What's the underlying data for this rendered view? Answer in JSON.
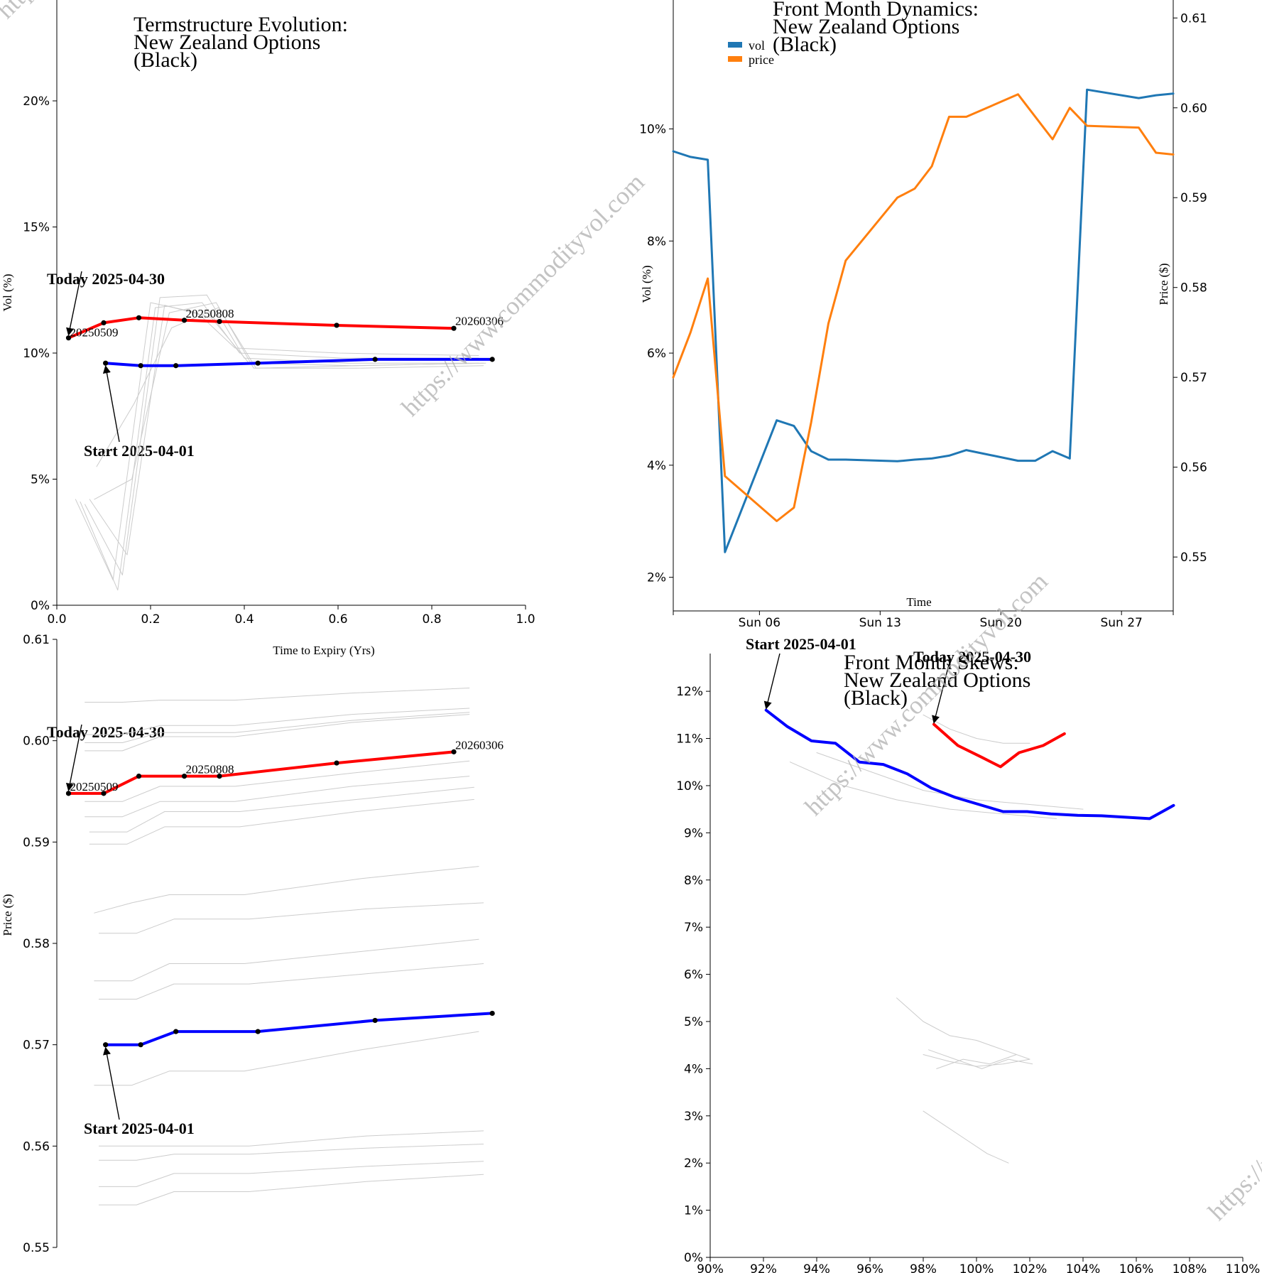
{
  "colors": {
    "today": "#ff0000",
    "start": "#0000ff",
    "history": "#cccccc",
    "vol_series": "#1f77b4",
    "price_series": "#ff7f0e",
    "watermark": "#b0b0b0"
  },
  "watermark": {
    "text": "https://www.commodityvol.com"
  },
  "chart_data": [
    {
      "id": "term_vol",
      "type": "line",
      "title": [
        "Termstructure Evolution:",
        "New Zealand Options",
        "(Black)"
      ],
      "xlabel": "Time to Expiry (Yrs)",
      "ylabel": "Vol (%)",
      "xlim": [
        0,
        1.0
      ],
      "ylim": [
        0,
        24
      ],
      "xticks": [
        0,
        0.2,
        0.4,
        0.6,
        0.8,
        1.0
      ],
      "xtick_labels": [
        "0.0",
        "0.2",
        "0.4",
        "0.6",
        "0.8",
        "1.0"
      ],
      "yticks": [
        0,
        5,
        10,
        15,
        20
      ],
      "ytick_labels": [
        "0%",
        "5%",
        "10%",
        "15%",
        "20%"
      ],
      "annotations": {
        "today": "Today 2025-04-30",
        "start": "Start 2025-04-01"
      },
      "point_labels": [
        {
          "text": "20250509",
          "x": 0.025,
          "y": 10.6
        },
        {
          "text": "20250808",
          "x": 0.272,
          "y": 11.3
        },
        {
          "text": "20260306",
          "x": 0.847,
          "y": 11.0
        }
      ],
      "series": [
        {
          "name": "Today 2025-04-30",
          "role": "today",
          "x": [
            0.025,
            0.1,
            0.175,
            0.272,
            0.347,
            0.597,
            0.847
          ],
          "y": [
            10.6,
            11.2,
            11.4,
            11.3,
            11.25,
            11.1,
            10.98
          ]
        },
        {
          "name": "Start 2025-04-01",
          "role": "start",
          "x": [
            0.104,
            0.179,
            0.254,
            0.429,
            0.679,
            0.929
          ],
          "y": [
            9.6,
            9.5,
            9.5,
            9.6,
            9.75,
            9.75
          ]
        }
      ],
      "history": [
        {
          "x": [
            0.04,
            0.12,
            0.2,
            0.3,
            0.38,
            0.6,
            0.9
          ],
          "y": [
            4.2,
            1.0,
            12.0,
            11.6,
            10.2,
            10.0,
            9.9
          ]
        },
        {
          "x": [
            0.05,
            0.13,
            0.21,
            0.31,
            0.39,
            0.61,
            0.9
          ],
          "y": [
            4.1,
            0.6,
            11.8,
            12.0,
            10.0,
            9.8,
            9.8
          ]
        },
        {
          "x": [
            0.06,
            0.14,
            0.22,
            0.32,
            0.4,
            0.62,
            0.9
          ],
          "y": [
            4.0,
            1.2,
            12.2,
            12.3,
            9.8,
            9.6,
            9.6
          ]
        },
        {
          "x": [
            0.07,
            0.15,
            0.23,
            0.33,
            0.41,
            0.63,
            0.91
          ],
          "y": [
            4.2,
            2.0,
            11.9,
            11.4,
            9.6,
            9.5,
            9.6
          ]
        },
        {
          "x": [
            0.08,
            0.16,
            0.24,
            0.34,
            0.42,
            0.64,
            0.91
          ],
          "y": [
            4.2,
            5.0,
            11.6,
            12.0,
            9.4,
            9.4,
            9.5
          ]
        },
        {
          "x": [
            0.085,
            0.165,
            0.245,
            0.345,
            0.425,
            0.645,
            0.915
          ],
          "y": [
            5.5,
            8.0,
            11.0,
            11.8,
            9.4,
            9.5,
            9.6
          ]
        }
      ]
    },
    {
      "id": "front_month",
      "type": "line",
      "title": [
        "Front Month Dynamics:",
        "New Zealand Options",
        "(Black)"
      ],
      "xlabel": "Time",
      "ylabel": "Vol (%)",
      "ylabel_right": "Price ($)",
      "legend_position": "top-left",
      "x_ticks": [
        {
          "day": 6,
          "label": "Sun 06"
        },
        {
          "day": 13,
          "label": "Sun 13"
        },
        {
          "day": 20,
          "label": "Sun 20"
        },
        {
          "day": 27,
          "label": "Sun 27"
        }
      ],
      "xlim": [
        1,
        30
      ],
      "ylim_left": [
        1.4,
        12.3
      ],
      "yticks_left": [
        2,
        4,
        6,
        8,
        10
      ],
      "ytick_labels_left": [
        "2%",
        "4%",
        "6%",
        "8%",
        "10%"
      ],
      "ylim_right": [
        0.544,
        0.612
      ],
      "yticks_right": [
        0.55,
        0.56,
        0.57,
        0.58,
        0.59,
        0.6,
        0.61
      ],
      "ytick_labels_right": [
        "0.55",
        "0.56",
        "0.57",
        "0.58",
        "0.59",
        "0.60",
        "0.61"
      ],
      "series": [
        {
          "name": "vol",
          "axis": "left",
          "day": [
            1,
            2,
            3,
            4,
            7,
            8,
            9,
            10,
            11,
            14,
            15,
            16,
            17,
            18,
            21,
            22,
            23,
            24,
            25,
            28,
            29,
            30
          ],
          "values": [
            9.6,
            9.5,
            9.45,
            2.45,
            4.8,
            4.7,
            4.25,
            4.1,
            4.1,
            4.07,
            4.1,
            4.12,
            4.17,
            4.27,
            4.08,
            4.08,
            4.25,
            4.12,
            10.7,
            10.55,
            10.6,
            10.63
          ]
        },
        {
          "name": "price",
          "axis": "right",
          "day": [
            1,
            2,
            3,
            4,
            7,
            8,
            9,
            10,
            11,
            14,
            15,
            16,
            17,
            18,
            21,
            22,
            23,
            24,
            25,
            28,
            29,
            30
          ],
          "values": [
            0.57,
            0.575,
            0.581,
            0.559,
            0.554,
            0.5555,
            0.565,
            0.576,
            0.583,
            0.59,
            0.591,
            0.5935,
            0.599,
            0.599,
            0.6015,
            0.599,
            0.5965,
            0.6,
            0.598,
            0.5978,
            0.595,
            0.5948
          ]
        }
      ]
    },
    {
      "id": "term_price",
      "type": "line",
      "title": [],
      "xlabel": "",
      "ylabel": "Price ($)",
      "xlim": [
        0,
        1.0
      ],
      "ylim": [
        0.55,
        0.61
      ],
      "yticks": [
        0.55,
        0.56,
        0.57,
        0.58,
        0.59,
        0.6,
        0.61
      ],
      "ytick_labels": [
        "0.55",
        "0.56",
        "0.57",
        "0.58",
        "0.59",
        "0.60",
        "0.61"
      ],
      "annotations": {
        "today": "Today 2025-04-30",
        "start": "Start 2025-04-01"
      },
      "point_labels": [
        {
          "text": "20250509",
          "x": 0.025,
          "y": 0.5948
        },
        {
          "text": "20250808",
          "x": 0.272,
          "y": 0.5965
        },
        {
          "text": "20260306",
          "x": 0.847,
          "y": 0.5989
        }
      ],
      "series": [
        {
          "name": "Today 2025-04-30",
          "role": "today",
          "x": [
            0.025,
            0.1,
            0.175,
            0.272,
            0.347,
            0.597,
            0.847
          ],
          "y": [
            0.5948,
            0.5948,
            0.5965,
            0.5965,
            0.5965,
            0.5978,
            0.5989
          ]
        },
        {
          "name": "Start 2025-04-01",
          "role": "start",
          "x": [
            0.104,
            0.179,
            0.254,
            0.429,
            0.679,
            0.929
          ],
          "y": [
            0.57,
            0.57,
            0.5713,
            0.5713,
            0.5724,
            0.5731
          ]
        }
      ],
      "history": [
        {
          "x": [
            0.06,
            0.14,
            0.22,
            0.38,
            0.63,
            0.88
          ],
          "y": [
            0.6038,
            0.6038,
            0.604,
            0.604,
            0.6047,
            0.6052
          ]
        },
        {
          "x": [
            0.06,
            0.14,
            0.22,
            0.38,
            0.63,
            0.88
          ],
          "y": [
            0.6006,
            0.6006,
            0.6015,
            0.6015,
            0.6026,
            0.6032
          ]
        },
        {
          "x": [
            0.06,
            0.14,
            0.22,
            0.38,
            0.63,
            0.88
          ],
          "y": [
            0.5998,
            0.5998,
            0.6008,
            0.6008,
            0.602,
            0.6028
          ]
        },
        {
          "x": [
            0.06,
            0.14,
            0.22,
            0.38,
            0.63,
            0.88
          ],
          "y": [
            0.599,
            0.599,
            0.6004,
            0.6004,
            0.6018,
            0.6026
          ]
        },
        {
          "x": [
            0.06,
            0.14,
            0.22,
            0.38,
            0.63,
            0.88
          ],
          "y": [
            0.594,
            0.594,
            0.5955,
            0.5955,
            0.5968,
            0.598
          ]
        },
        {
          "x": [
            0.06,
            0.14,
            0.22,
            0.38,
            0.63,
            0.88
          ],
          "y": [
            0.5925,
            0.5925,
            0.594,
            0.594,
            0.5955,
            0.5965
          ]
        },
        {
          "x": [
            0.07,
            0.15,
            0.23,
            0.39,
            0.64,
            0.89
          ],
          "y": [
            0.591,
            0.591,
            0.593,
            0.593,
            0.5942,
            0.5954
          ]
        },
        {
          "x": [
            0.07,
            0.15,
            0.23,
            0.39,
            0.64,
            0.89
          ],
          "y": [
            0.5898,
            0.5898,
            0.5915,
            0.5915,
            0.593,
            0.5942
          ]
        },
        {
          "x": [
            0.08,
            0.16,
            0.24,
            0.4,
            0.65,
            0.9
          ],
          "y": [
            0.583,
            0.584,
            0.5848,
            0.5848,
            0.5864,
            0.5876
          ]
        },
        {
          "x": [
            0.09,
            0.17,
            0.25,
            0.41,
            0.66,
            0.91
          ],
          "y": [
            0.581,
            0.581,
            0.5824,
            0.5824,
            0.5834,
            0.584
          ]
        },
        {
          "x": [
            0.08,
            0.16,
            0.24,
            0.4,
            0.65,
            0.9
          ],
          "y": [
            0.5763,
            0.5763,
            0.578,
            0.578,
            0.5792,
            0.5804
          ]
        },
        {
          "x": [
            0.09,
            0.17,
            0.25,
            0.41,
            0.66,
            0.91
          ],
          "y": [
            0.5745,
            0.5745,
            0.576,
            0.576,
            0.577,
            0.578
          ]
        },
        {
          "x": [
            0.08,
            0.16,
            0.24,
            0.4,
            0.65,
            0.9
          ],
          "y": [
            0.566,
            0.566,
            0.5674,
            0.5674,
            0.5695,
            0.5713
          ]
        },
        {
          "x": [
            0.09,
            0.17,
            0.25,
            0.41,
            0.66,
            0.91
          ],
          "y": [
            0.56,
            0.56,
            0.56,
            0.56,
            0.561,
            0.5615
          ]
        },
        {
          "x": [
            0.09,
            0.17,
            0.25,
            0.41,
            0.66,
            0.91
          ],
          "y": [
            0.5586,
            0.5586,
            0.5592,
            0.5592,
            0.5598,
            0.5602
          ]
        },
        {
          "x": [
            0.09,
            0.17,
            0.25,
            0.41,
            0.66,
            0.91
          ],
          "y": [
            0.556,
            0.556,
            0.5573,
            0.5573,
            0.558,
            0.5585
          ]
        },
        {
          "x": [
            0.09,
            0.17,
            0.25,
            0.41,
            0.66,
            0.91
          ],
          "y": [
            0.5542,
            0.5542,
            0.5555,
            0.5555,
            0.5565,
            0.5572
          ]
        }
      ]
    },
    {
      "id": "front_skews",
      "type": "line",
      "title": [
        "Front Month Skews:",
        "New Zealand Options",
        "(Black)"
      ],
      "xlabel": "",
      "ylabel": "",
      "xlim": [
        90,
        110
      ],
      "ylim": [
        0,
        12.8
      ],
      "xticks": [
        90,
        92,
        94,
        96,
        98,
        100,
        102,
        104,
        106,
        108,
        110
      ],
      "xtick_labels": [
        "90%",
        "92%",
        "94%",
        "96%",
        "98%",
        "100%",
        "102%",
        "104%",
        "106%",
        "108%",
        "110%"
      ],
      "yticks": [
        0,
        1,
        2,
        3,
        4,
        5,
        6,
        7,
        8,
        9,
        10,
        11,
        12
      ],
      "ytick_labels": [
        "0%",
        "1%",
        "2%",
        "3%",
        "4%",
        "5%",
        "6%",
        "7%",
        "8%",
        "9%",
        "10%",
        "11%",
        "12%"
      ],
      "annotations": {
        "today": "Today 2025-04-30",
        "start": "Start 2025-04-01"
      },
      "series": [
        {
          "name": "Today 2025-04-30",
          "role": "today",
          "x": [
            98.4,
            99.3,
            100.2,
            100.9,
            101.6,
            102.5,
            103.3
          ],
          "y": [
            11.3,
            10.85,
            10.6,
            10.4,
            10.7,
            10.85,
            11.1
          ]
        },
        {
          "name": "Start 2025-04-01",
          "role": "start",
          "x": [
            92.1,
            92.9,
            93.8,
            94.7,
            95.6,
            96.5,
            97.4,
            98.3,
            99.2,
            100.1,
            101.0,
            101.9,
            102.8,
            103.8,
            104.7,
            105.6,
            106.5,
            107.4
          ],
          "y": [
            11.6,
            11.25,
            10.95,
            10.9,
            10.5,
            10.45,
            10.25,
            9.95,
            9.75,
            9.6,
            9.45,
            9.45,
            9.4,
            9.37,
            9.36,
            9.33,
            9.3,
            9.58
          ]
        }
      ],
      "history": [
        {
          "x": [
            93,
            95,
            97,
            99,
            101,
            103
          ],
          "y": [
            10.5,
            10.0,
            9.7,
            9.5,
            9.4,
            9.3
          ]
        },
        {
          "x": [
            94,
            96,
            98,
            100,
            102,
            104
          ],
          "y": [
            10.7,
            10.3,
            9.9,
            9.7,
            9.6,
            9.5
          ]
        },
        {
          "x": [
            98,
            99,
            100,
            101,
            102
          ],
          "y": [
            11.5,
            11.2,
            11.0,
            10.9,
            10.9
          ]
        },
        {
          "x": [
            97,
            98,
            99,
            100,
            101,
            102
          ],
          "y": [
            5.5,
            5.0,
            4.7,
            4.6,
            4.4,
            4.2
          ]
        },
        {
          "x": [
            98,
            99,
            100,
            101,
            102
          ],
          "y": [
            4.3,
            4.15,
            4.05,
            4.1,
            4.2
          ]
        },
        {
          "x": [
            98.5,
            99.5,
            100.5,
            101.5
          ],
          "y": [
            4.0,
            4.2,
            4.1,
            4.3
          ]
        },
        {
          "x": [
            98.2,
            99.2,
            100.2,
            101.2,
            102.1
          ],
          "y": [
            4.4,
            4.2,
            4.0,
            4.2,
            4.1
          ]
        },
        {
          "x": [
            98,
            98.8,
            99.6,
            100.4,
            101.2
          ],
          "y": [
            3.1,
            2.8,
            2.5,
            2.2,
            2.0
          ]
        }
      ]
    }
  ]
}
